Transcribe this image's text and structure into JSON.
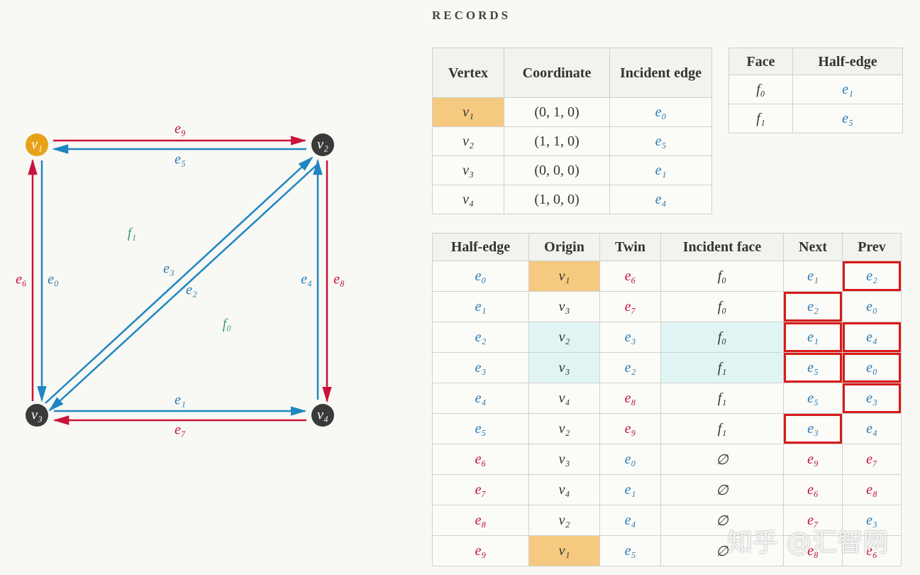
{
  "title": "RECORDS",
  "diagram": {
    "vertices": [
      "v₁",
      "v₂",
      "v₃",
      "v₄"
    ],
    "edges": [
      "e₀",
      "e₁",
      "e₂",
      "e₃",
      "e₄",
      "e₅",
      "e₆",
      "e₇",
      "e₈",
      "e₉"
    ],
    "faces": [
      "f₀",
      "f₁"
    ]
  },
  "vertex_table": {
    "header": [
      "Vertex",
      "Coordinate",
      "Incident edge"
    ],
    "rows": [
      [
        "v₁",
        "(0, 1, 0)",
        "e₀"
      ],
      [
        "v₂",
        "(1, 1, 0)",
        "e₅"
      ],
      [
        "v₃",
        "(0, 0, 0)",
        "e₁"
      ],
      [
        "v₄",
        "(1, 0, 0)",
        "e₄"
      ]
    ]
  },
  "face_table": {
    "header": [
      "Face",
      "Half-edge"
    ],
    "rows": [
      [
        "f₀",
        "e₁"
      ],
      [
        "f₁",
        "e₅"
      ]
    ]
  },
  "half_edge_table": {
    "header": [
      "Half-edge",
      "Origin",
      "Twin",
      "Incident face",
      "Next",
      "Prev"
    ],
    "rows": [
      [
        "e₀",
        "v₁",
        "e₆",
        "f₀",
        "e₁",
        "e₂"
      ],
      [
        "e₁",
        "v₃",
        "e₇",
        "f₀",
        "e₂",
        "e₀"
      ],
      [
        "e₂",
        "v₂",
        "e₃",
        "f₀",
        "e₁",
        "e₄"
      ],
      [
        "e₃",
        "v₃",
        "e₂",
        "f₁",
        "e₅",
        "e₀"
      ],
      [
        "e₄",
        "v₄",
        "e₈",
        "f₁",
        "e₅",
        "e₃"
      ],
      [
        "e₅",
        "v₂",
        "e₉",
        "f₁",
        "e₃",
        "e₄"
      ],
      [
        "e₆",
        "v₃",
        "e₀",
        "∅",
        "e₉",
        "e₇"
      ],
      [
        "e₇",
        "v₄",
        "e₁",
        "∅",
        "e₆",
        "e₈"
      ],
      [
        "e₈",
        "v₂",
        "e₄",
        "∅",
        "e₇",
        "e₃"
      ],
      [
        "e₉",
        "v₁",
        "e₅",
        "∅",
        "e₈",
        "e₆"
      ]
    ]
  },
  "watermark": "知乎 @汇智网"
}
